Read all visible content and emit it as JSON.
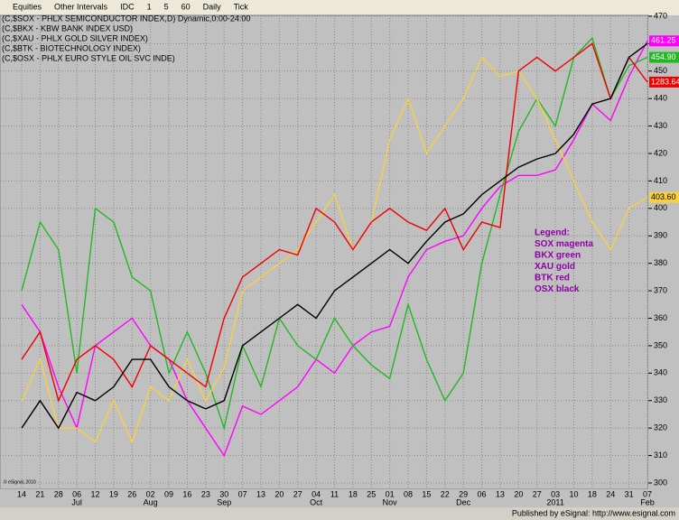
{
  "toolbar": [
    "Equities",
    "Other Intervals",
    "IDC",
    "1",
    "5",
    "60",
    "Daily",
    "Tick"
  ],
  "status": "Published by eSignal: http://www.esignal.com",
  "copyright": "© eSignal, 2010",
  "chart_data": {
    "type": "line",
    "titles": [
      "(C,$SOX - PHLX SEMICONDUCTOR INDEX,D) Dynamic,0:00-24:00",
      "(C,$BKX - KBW BANK INDEX USD)",
      "(C,$XAU - PHLX GOLD SILVER INDEX)",
      "(C,$BTK - BIOTECHNOLOGY INDEX)",
      "(C,$OSX - PHLX EURO STYLE OIL SVC INDE)"
    ],
    "legend_text": [
      "Legend:",
      "SOX magenta",
      "BKX green",
      "XAU gold",
      "BTK red",
      "OSX black"
    ],
    "categories": [
      "14",
      "21",
      "28",
      "06",
      "12",
      "19",
      "26",
      "02",
      "09",
      "16",
      "23",
      "30",
      "07",
      "13",
      "20",
      "27",
      "04",
      "11",
      "18",
      "25",
      "01",
      "08",
      "15",
      "22",
      "29",
      "06",
      "13",
      "20",
      "27",
      "03",
      "10",
      "18",
      "24",
      "31",
      "07"
    ],
    "months": [
      null,
      null,
      null,
      "Jul",
      null,
      null,
      null,
      "Aug",
      null,
      null,
      null,
      "Sep",
      null,
      null,
      null,
      null,
      "Oct",
      null,
      null,
      null,
      "Nov",
      null,
      null,
      null,
      "Dec",
      null,
      null,
      null,
      null,
      "2011",
      null,
      null,
      null,
      null,
      "Feb"
    ],
    "ylim": [
      297.7,
      470.3
    ],
    "yticks": [
      300,
      310,
      320,
      330,
      340,
      350,
      360,
      370,
      380,
      390,
      400,
      410,
      420,
      430,
      440,
      450,
      460,
      470
    ],
    "grid": true,
    "series": [
      {
        "name": "SOX",
        "color": "#ff00ff",
        "badge": "461.25",
        "values": [
          365,
          355,
          335,
          320,
          350,
          355,
          360,
          350,
          345,
          330,
          320,
          310,
          328,
          325,
          330,
          335,
          345,
          340,
          350,
          355,
          357,
          375,
          385,
          388,
          390,
          400,
          408,
          412,
          412,
          414,
          425,
          438,
          432,
          448,
          461
        ]
      },
      {
        "name": "BKX",
        "color": "#22b822",
        "badge": "454.90",
        "values": [
          370,
          395,
          385,
          340,
          400,
          395,
          375,
          370,
          340,
          355,
          340,
          320,
          350,
          335,
          360,
          350,
          345,
          360,
          350,
          343,
          338,
          365,
          345,
          330,
          340,
          380,
          405,
          428,
          440,
          430,
          455,
          462,
          440,
          452,
          455
        ]
      },
      {
        "name": "XAU",
        "color": "#f8d040",
        "badge": "403.60",
        "values": [
          330,
          345,
          320,
          320,
          315,
          330,
          315,
          335,
          330,
          345,
          330,
          342,
          370,
          375,
          380,
          385,
          395,
          405,
          385,
          395,
          425,
          440,
          420,
          430,
          440,
          455,
          448,
          450,
          440,
          425,
          410,
          395,
          385,
          400,
          404
        ]
      },
      {
        "name": "BTK",
        "color": "#ee0000",
        "badge": "1283.64",
        "values": [
          345,
          355,
          330,
          345,
          350,
          345,
          335,
          350,
          345,
          340,
          335,
          360,
          375,
          380,
          385,
          383,
          400,
          395,
          385,
          395,
          400,
          395,
          392,
          400,
          385,
          395,
          393,
          450,
          455,
          450,
          455,
          460,
          440,
          455,
          446
        ]
      },
      {
        "name": "OSX",
        "color": "#000000",
        "badge": null,
        "values": [
          320,
          330,
          320,
          333,
          330,
          335,
          345,
          345,
          335,
          330,
          327,
          330,
          350,
          355,
          360,
          365,
          360,
          370,
          375,
          380,
          385,
          380,
          388,
          395,
          398,
          405,
          410,
          415,
          418,
          420,
          427,
          438,
          440,
          455,
          460
        ]
      }
    ]
  }
}
